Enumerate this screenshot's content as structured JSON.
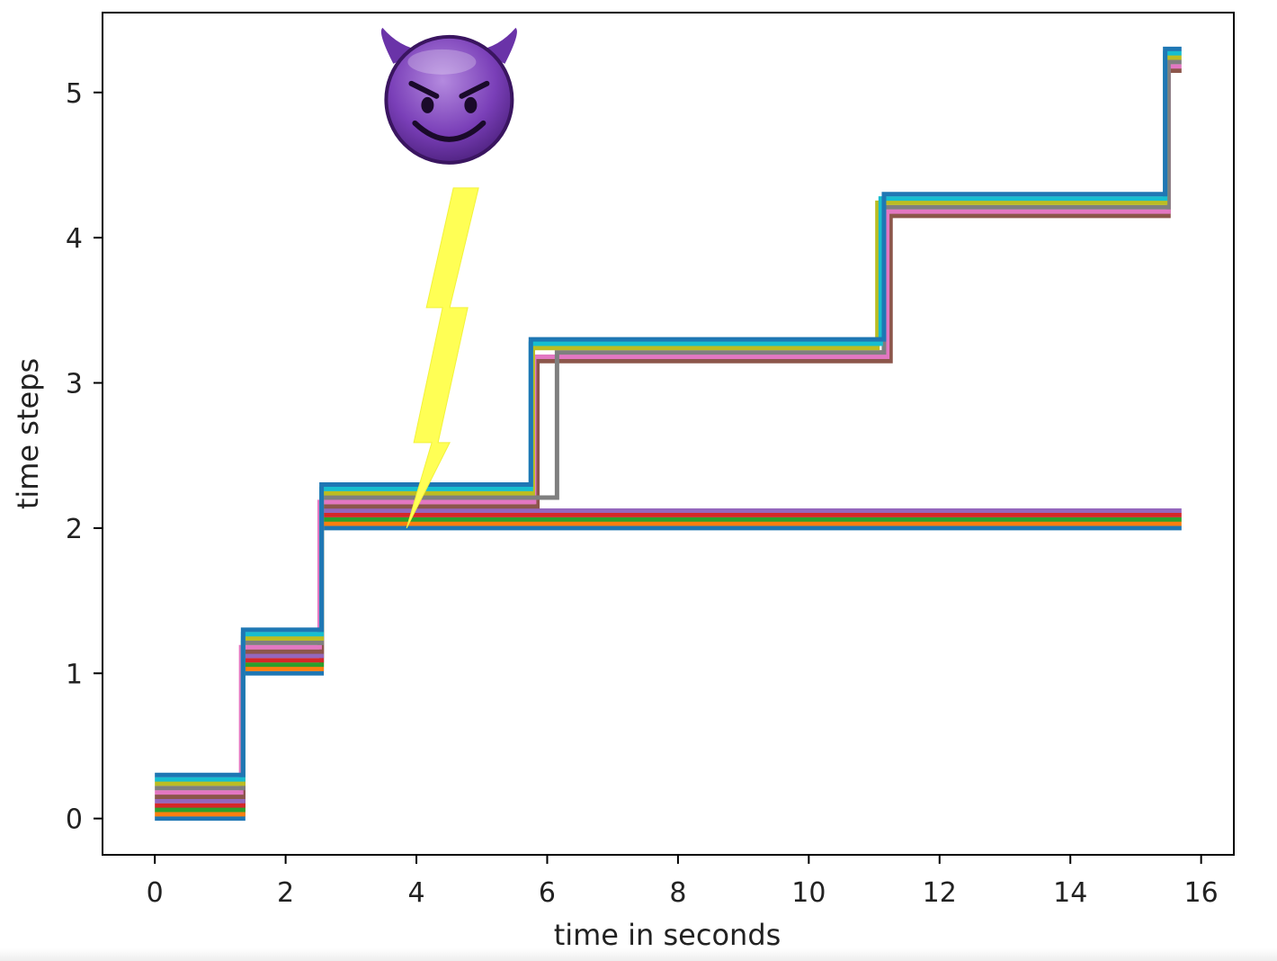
{
  "chart_data": {
    "type": "line",
    "title": "",
    "xlabel": "time in seconds",
    "ylabel": "time steps",
    "xlim": [
      -0.8,
      16.5
    ],
    "ylim": [
      -0.25,
      5.55
    ],
    "xticks": [
      0,
      2,
      4,
      6,
      8,
      10,
      12,
      14,
      16
    ],
    "yticks": [
      0,
      1,
      2,
      3,
      4,
      5
    ],
    "grid": false,
    "legend": "none",
    "line_style": "step",
    "series": [
      {
        "color": "#1f77b4",
        "offset": 0.0,
        "steps": [
          [
            0,
            0
          ],
          [
            1.35,
            1
          ],
          [
            2.55,
            2
          ],
          [
            15.7,
            2
          ]
        ]
      },
      {
        "color": "#ff7f0e",
        "offset": 0.03,
        "steps": [
          [
            0,
            0
          ],
          [
            1.35,
            1
          ],
          [
            2.55,
            2
          ],
          [
            15.7,
            2
          ]
        ]
      },
      {
        "color": "#2ca02c",
        "offset": 0.06,
        "steps": [
          [
            0,
            0
          ],
          [
            1.35,
            1
          ],
          [
            2.55,
            2
          ],
          [
            15.7,
            2
          ]
        ]
      },
      {
        "color": "#d62728",
        "offset": 0.09,
        "steps": [
          [
            0,
            0
          ],
          [
            1.35,
            1
          ],
          [
            2.55,
            2
          ],
          [
            15.7,
            2
          ]
        ]
      },
      {
        "color": "#9467bd",
        "offset": 0.12,
        "steps": [
          [
            0,
            0
          ],
          [
            1.35,
            1
          ],
          [
            2.55,
            2
          ],
          [
            15.7,
            2
          ]
        ]
      },
      {
        "color": "#8c564b",
        "offset": 0.15,
        "steps": [
          [
            0,
            0
          ],
          [
            1.35,
            1
          ],
          [
            2.55,
            2
          ],
          [
            5.85,
            3
          ],
          [
            11.25,
            4
          ],
          [
            15.5,
            5
          ],
          [
            15.7,
            5
          ]
        ]
      },
      {
        "color": "#e377c2",
        "offset": 0.18,
        "steps": [
          [
            0,
            0
          ],
          [
            1.32,
            1
          ],
          [
            2.52,
            2
          ],
          [
            5.8,
            3
          ],
          [
            11.2,
            4
          ],
          [
            15.5,
            5
          ],
          [
            15.7,
            5
          ]
        ]
      },
      {
        "color": "#7f7f7f",
        "offset": 0.21,
        "steps": [
          [
            0,
            0
          ],
          [
            1.35,
            1
          ],
          [
            2.55,
            2
          ],
          [
            6.15,
            3
          ],
          [
            11.15,
            4
          ],
          [
            15.5,
            5
          ],
          [
            15.7,
            5
          ]
        ]
      },
      {
        "color": "#bcbd22",
        "offset": 0.24,
        "steps": [
          [
            0,
            0
          ],
          [
            1.35,
            1
          ],
          [
            2.55,
            2
          ],
          [
            5.78,
            3
          ],
          [
            11.05,
            4
          ],
          [
            15.45,
            5
          ],
          [
            15.7,
            5
          ]
        ]
      },
      {
        "color": "#17becf",
        "offset": 0.27,
        "steps": [
          [
            0,
            0
          ],
          [
            1.35,
            1
          ],
          [
            2.55,
            2
          ],
          [
            5.75,
            3
          ],
          [
            11.1,
            4
          ],
          [
            15.45,
            5
          ],
          [
            15.7,
            5
          ]
        ]
      },
      {
        "color": "#1f77b4",
        "offset": 0.3,
        "steps": [
          [
            0,
            0
          ],
          [
            1.35,
            1
          ],
          [
            2.55,
            2
          ],
          [
            5.75,
            3
          ],
          [
            11.15,
            4
          ],
          [
            15.45,
            5
          ],
          [
            15.7,
            5
          ]
        ]
      }
    ],
    "annotations": [
      {
        "kind": "emoji",
        "name": "smiling-devil-icon",
        "glyph": "😈",
        "x": 4.5,
        "y": 4.95
      },
      {
        "kind": "lightning-bolt",
        "name": "lightning-bolt-icon",
        "color": "#ffff55",
        "tip_x": 3.85,
        "tip_y": 2.0
      }
    ]
  }
}
